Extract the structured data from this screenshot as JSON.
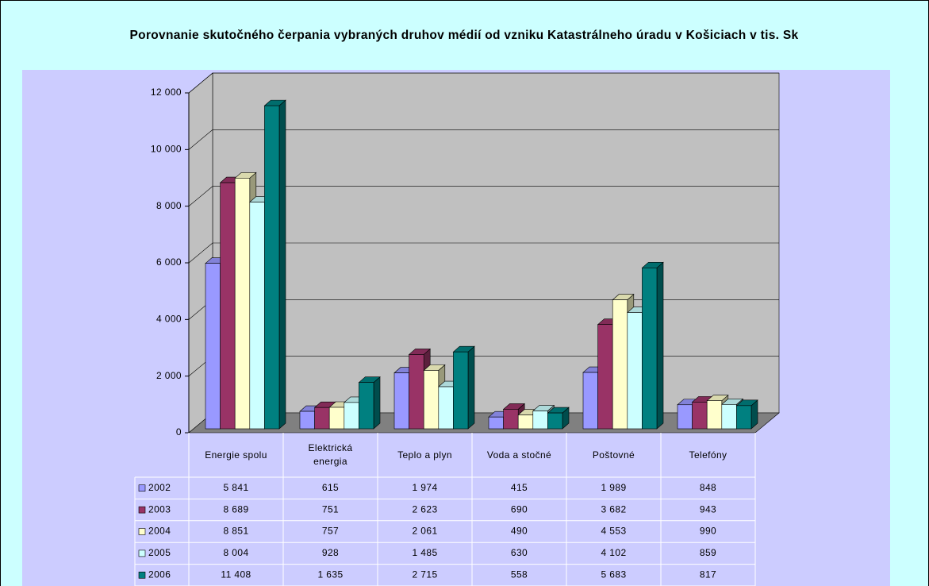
{
  "chart_data": {
    "type": "bar3d",
    "title": "Porovnanie skutočného čerpania vybraných druhov médií od vzniku Katastrálneho úradu v Košiciach v tis. Sk",
    "categories": [
      "Energie spolu",
      "Elektrická energia",
      "Teplo a plyn",
      "Voda a stočné",
      "Poštovné",
      "Telefóny"
    ],
    "series": [
      {
        "name": "2002",
        "color": "#9999ff",
        "values": [
          5841,
          615,
          1974,
          415,
          1989,
          848
        ],
        "value_labels": [
          "5 841",
          "615",
          "1 974",
          "415",
          "1 989",
          "848"
        ]
      },
      {
        "name": "2003",
        "color": "#993366",
        "values": [
          8689,
          751,
          2623,
          690,
          3682,
          943
        ],
        "value_labels": [
          "8 689",
          "751",
          "2 623",
          "690",
          "3 682",
          "943"
        ]
      },
      {
        "name": "2004",
        "color": "#ffffcc",
        "values": [
          8851,
          757,
          2061,
          490,
          4553,
          990
        ],
        "value_labels": [
          "8 851",
          "757",
          "2 061",
          "490",
          "4 553",
          "990"
        ]
      },
      {
        "name": "2005",
        "color": "#ccffff",
        "values": [
          8004,
          928,
          1485,
          630,
          4102,
          859
        ],
        "value_labels": [
          "8 004",
          "928",
          "1 485",
          "630",
          "4 102",
          "859"
        ]
      },
      {
        "name": "2006",
        "color": "#008080",
        "values": [
          11408,
          1635,
          2715,
          558,
          5683,
          817
        ],
        "value_labels": [
          "11 408",
          "1 635",
          "2 715",
          "558",
          "5 683",
          "817"
        ]
      }
    ],
    "ylim": [
      0,
      12000
    ],
    "yticks": [
      0,
      {
        "value": 2000,
        "label": "2 000"
      },
      {
        "value": 4000,
        "label": "4 000"
      },
      {
        "value": 6000,
        "label": "6 000"
      },
      {
        "value": 8000,
        "label": "8 000"
      },
      {
        "value": 10000,
        "label": "10 000"
      },
      {
        "value": 12000,
        "label": "12 000"
      }
    ],
    "grid": true
  }
}
